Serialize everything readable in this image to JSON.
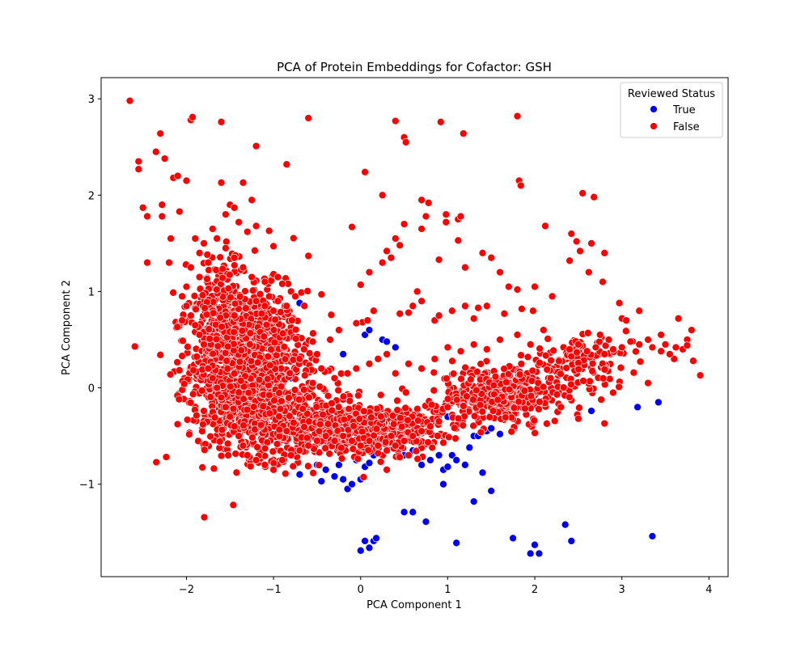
{
  "chart_data": {
    "type": "scatter",
    "title": "PCA of Protein Embeddings for Cofactor: GSH",
    "xlabel": "PCA Component 1",
    "ylabel": "PCA Component 2",
    "xlim": [
      -2.98,
      4.22
    ],
    "ylim": [
      -1.96,
      3.22
    ],
    "xticks": [
      -2,
      -1,
      0,
      1,
      2,
      3,
      4
    ],
    "yticks": [
      -1,
      0,
      1,
      2,
      3
    ],
    "xtick_labels": [
      "−2",
      "−1",
      "0",
      "1",
      "2",
      "3",
      "4"
    ],
    "ytick_labels": [
      "−1",
      "0",
      "1",
      "2",
      "3"
    ],
    "grid": false,
    "legend": {
      "title": "Reviewed Status",
      "position": "upper-right"
    },
    "series": [
      {
        "name": "True",
        "color": "#0000ff",
        "points": [
          [
            -1.6,
            1.0
          ],
          [
            -0.7,
            0.88
          ],
          [
            -0.7,
            -0.9
          ],
          [
            -0.5,
            -0.8
          ],
          [
            -0.45,
            -0.97
          ],
          [
            -0.4,
            -0.85
          ],
          [
            -0.3,
            -0.92
          ],
          [
            -0.25,
            -0.8
          ],
          [
            -0.2,
            -0.95
          ],
          [
            -0.15,
            -1.05
          ],
          [
            -0.1,
            -1.0
          ],
          [
            -0.05,
            -0.75
          ],
          [
            0.0,
            -0.95
          ],
          [
            0.05,
            -0.82
          ],
          [
            0.1,
            -0.78
          ],
          [
            0.15,
            -0.7
          ],
          [
            0.05,
            0.55
          ],
          [
            0.1,
            0.6
          ],
          [
            0.25,
            0.5
          ],
          [
            0.3,
            0.48
          ],
          [
            0.4,
            0.42
          ],
          [
            -0.2,
            0.35
          ],
          [
            0.35,
            -0.6
          ],
          [
            0.5,
            -0.7
          ],
          [
            0.6,
            -0.65
          ],
          [
            0.7,
            -0.8
          ],
          [
            0.8,
            -0.75
          ],
          [
            0.9,
            -0.7
          ],
          [
            0.95,
            -0.85
          ],
          [
            1.0,
            -0.82
          ],
          [
            1.05,
            -0.7
          ],
          [
            1.1,
            -0.75
          ],
          [
            1.2,
            -0.8
          ],
          [
            1.3,
            -0.5
          ],
          [
            1.35,
            -0.5
          ],
          [
            1.45,
            -0.45
          ],
          [
            1.5,
            -0.42
          ],
          [
            1.6,
            -0.48
          ],
          [
            1.25,
            -0.62
          ],
          [
            0.95,
            -1.0
          ],
          [
            1.3,
            -1.18
          ],
          [
            1.5,
            -1.07
          ],
          [
            1.4,
            -0.88
          ],
          [
            0.5,
            -1.29
          ],
          [
            0.6,
            -1.29
          ],
          [
            0.75,
            -1.39
          ],
          [
            1.1,
            -1.61
          ],
          [
            0.0,
            -1.69
          ],
          [
            0.05,
            -1.59
          ],
          [
            0.1,
            -1.66
          ],
          [
            0.15,
            -1.59
          ],
          [
            0.18,
            -1.56
          ],
          [
            1.75,
            -1.56
          ],
          [
            1.95,
            -1.72
          ],
          [
            2.05,
            -1.72
          ],
          [
            2.0,
            -1.63
          ],
          [
            2.35,
            -1.42
          ],
          [
            2.42,
            -1.59
          ],
          [
            3.35,
            -1.54
          ],
          [
            2.65,
            -0.24
          ],
          [
            3.18,
            -0.2
          ],
          [
            3.42,
            -0.15
          ],
          [
            1.7,
            -0.3
          ],
          [
            1.0,
            -0.3
          ],
          [
            -1.2,
            0.05
          ],
          [
            -0.8,
            0.1
          ]
        ]
      },
      {
        "name": "False",
        "color": "#ff0000",
        "points": [
          [
            -2.65,
            2.98
          ],
          [
            -2.55,
            2.35
          ],
          [
            -2.55,
            2.27
          ],
          [
            -2.5,
            1.87
          ],
          [
            -2.45,
            1.3
          ],
          [
            -2.45,
            1.78
          ],
          [
            -2.35,
            2.45
          ],
          [
            -2.3,
            2.64
          ],
          [
            -2.28,
            1.9
          ],
          [
            -2.28,
            1.78
          ],
          [
            -2.25,
            2.38
          ],
          [
            -2.2,
            1.3
          ],
          [
            -2.18,
            1.55
          ],
          [
            -2.15,
            2.18
          ],
          [
            -2.1,
            2.2
          ],
          [
            -2.08,
            1.83
          ],
          [
            -2.0,
            2.15
          ],
          [
            -1.95,
            2.78
          ],
          [
            -1.93,
            2.81
          ],
          [
            -1.9,
            1.55
          ],
          [
            -1.6,
            2.76
          ],
          [
            -1.6,
            2.13
          ],
          [
            -1.2,
            2.51
          ],
          [
            -1.35,
            2.13
          ],
          [
            -0.85,
            2.32
          ],
          [
            -0.6,
            2.8
          ],
          [
            -1.25,
            1.95
          ],
          [
            -1.5,
            1.9
          ],
          [
            -1.45,
            1.87
          ],
          [
            -1.55,
            1.8
          ],
          [
            -1.4,
            1.72
          ],
          [
            -1.3,
            1.62
          ],
          [
            -1.2,
            1.68
          ],
          [
            -1.05,
            1.63
          ],
          [
            -1.0,
            1.47
          ],
          [
            -0.6,
            1.37
          ],
          [
            -0.45,
            0.97
          ],
          [
            0.05,
            2.24
          ],
          [
            -0.1,
            1.67
          ],
          [
            0.25,
            2.0
          ],
          [
            0.4,
            2.77
          ],
          [
            0.5,
            2.6
          ],
          [
            0.52,
            2.55
          ],
          [
            0.92,
            2.76
          ],
          [
            1.18,
            2.64
          ],
          [
            1.8,
            2.82
          ],
          [
            1.82,
            2.15
          ],
          [
            1.84,
            2.1
          ],
          [
            2.55,
            2.02
          ],
          [
            2.68,
            1.98
          ],
          [
            0.7,
            1.95
          ],
          [
            0.78,
            1.92
          ],
          [
            0.5,
            1.7
          ],
          [
            0.75,
            1.78
          ],
          [
            0.98,
            1.8
          ],
          [
            0.98,
            1.72
          ],
          [
            1.12,
            1.75
          ],
          [
            1.15,
            1.78
          ],
          [
            1.12,
            1.53
          ],
          [
            0.7,
            1.65
          ],
          [
            0.4,
            1.55
          ],
          [
            0.45,
            1.48
          ],
          [
            0.3,
            1.42
          ],
          [
            0.25,
            1.3
          ],
          [
            0.35,
            1.35
          ],
          [
            0.9,
            1.33
          ],
          [
            1.2,
            1.25
          ],
          [
            0.1,
            1.2
          ],
          [
            0.0,
            1.07
          ],
          [
            2.12,
            1.68
          ],
          [
            2.42,
            1.6
          ],
          [
            2.48,
            1.52
          ],
          [
            2.65,
            1.5
          ],
          [
            2.52,
            1.42
          ],
          [
            2.8,
            1.4
          ],
          [
            2.4,
            1.32
          ],
          [
            2.62,
            1.2
          ],
          [
            2.78,
            1.1
          ],
          [
            1.4,
            1.4
          ],
          [
            1.5,
            1.35
          ],
          [
            1.6,
            1.2
          ],
          [
            1.7,
            1.05
          ],
          [
            1.8,
            1.02
          ],
          [
            2.0,
            1.05
          ],
          [
            2.2,
            0.95
          ],
          [
            1.35,
            0.83
          ],
          [
            1.45,
            0.85
          ],
          [
            1.65,
            0.77
          ],
          [
            1.85,
            0.82
          ],
          [
            1.98,
            0.8
          ],
          [
            0.65,
            1.0
          ],
          [
            0.7,
            0.9
          ],
          [
            0.6,
            0.85
          ],
          [
            0.55,
            0.78
          ],
          [
            0.45,
            0.77
          ],
          [
            0.85,
            0.7
          ],
          [
            0.9,
            0.75
          ],
          [
            1.05,
            0.8
          ],
          [
            1.3,
            0.72
          ],
          [
            1.2,
            0.85
          ],
          [
            2.97,
            0.88
          ],
          [
            3.0,
            0.72
          ],
          [
            3.2,
            0.8
          ],
          [
            3.05,
            0.7
          ],
          [
            3.65,
            0.72
          ],
          [
            3.45,
            0.55
          ],
          [
            3.8,
            0.6
          ],
          [
            3.9,
            0.13
          ],
          [
            3.75,
            0.5
          ],
          [
            3.82,
            0.28
          ],
          [
            2.9,
            -0.05
          ],
          [
            3.3,
            0.05
          ],
          [
            2.8,
            -0.37
          ],
          [
            2.5,
            -0.32
          ],
          [
            2.3,
            -0.2
          ],
          [
            3.7,
            0.4
          ],
          [
            3.6,
            0.3
          ],
          [
            3.75,
            0.44
          ],
          [
            3.55,
            0.35
          ],
          [
            3.62,
            0.42
          ],
          [
            3.45,
            0.38
          ],
          [
            3.35,
            0.42
          ],
          [
            3.2,
            0.45
          ],
          [
            3.0,
            0.42
          ],
          [
            2.9,
            0.4
          ],
          [
            2.8,
            0.35
          ],
          [
            2.7,
            0.42
          ],
          [
            2.6,
            0.38
          ],
          [
            2.5,
            0.45
          ],
          [
            2.4,
            0.4
          ],
          [
            3.1,
            0.48
          ],
          [
            3.3,
            0.5
          ],
          [
            3.5,
            0.45
          ],
          [
            2.75,
            0.55
          ],
          [
            2.85,
            0.5
          ],
          [
            0.02,
            0.68
          ],
          [
            0.08,
            0.7
          ],
          [
            0.15,
            0.8
          ],
          [
            -0.05,
            0.67
          ],
          [
            -0.25,
            0.6
          ],
          [
            -0.35,
            0.5
          ],
          [
            -0.55,
            0.48
          ],
          [
            -0.65,
            0.4
          ],
          [
            -0.7,
            0.3
          ],
          [
            -0.5,
            0.35
          ],
          [
            -0.8,
            1.0
          ],
          [
            -0.75,
            0.95
          ],
          [
            -0.9,
            1.08
          ],
          [
            -0.95,
            0.9
          ],
          [
            -0.85,
            0.85
          ],
          [
            -1.0,
            0.8
          ],
          [
            -1.1,
            0.85
          ],
          [
            -1.2,
            0.9
          ],
          [
            -1.05,
            0.95
          ],
          [
            -0.95,
            1.15
          ],
          [
            -1.1,
            1.1
          ],
          [
            -1.25,
            1.15
          ],
          [
            -1.35,
            1.25
          ],
          [
            -1.45,
            1.35
          ],
          [
            -1.55,
            1.45
          ],
          [
            -1.65,
            1.55
          ],
          [
            -1.7,
            1.65
          ],
          [
            -1.8,
            1.5
          ],
          [
            -1.85,
            1.4
          ],
          [
            -1.75,
            1.3
          ],
          [
            -1.85,
            1.15
          ],
          [
            -1.95,
            1.25
          ],
          [
            -2.0,
            1.05
          ],
          [
            -2.05,
            0.95
          ],
          [
            -2.0,
            0.85
          ],
          [
            -1.95,
            0.75
          ],
          [
            -2.05,
            0.7
          ],
          [
            -1.9,
            0.65
          ],
          [
            -1.85,
            0.55
          ],
          [
            -1.8,
            0.45
          ],
          [
            -2.05,
            0.33
          ],
          [
            -1.8,
            -0.24
          ],
          [
            -1.75,
            0.2
          ],
          [
            -1.7,
            0.1
          ],
          [
            -1.65,
            0.0
          ],
          [
            -1.6,
            -0.1
          ],
          [
            -1.55,
            -0.2
          ],
          [
            -1.5,
            -0.3
          ],
          [
            -1.45,
            -0.4
          ],
          [
            -1.4,
            -0.5
          ],
          [
            -1.35,
            -0.6
          ],
          [
            -1.3,
            -0.7
          ],
          [
            -1.2,
            -0.75
          ],
          [
            -1.1,
            -0.8
          ],
          [
            -1.0,
            -0.85
          ],
          [
            -0.9,
            -0.75
          ],
          [
            -0.8,
            -0.7
          ],
          [
            -0.7,
            -0.65
          ],
          [
            -0.6,
            -0.6
          ],
          [
            -0.5,
            -0.55
          ],
          [
            -0.4,
            -0.5
          ],
          [
            -0.3,
            -0.55
          ],
          [
            -0.2,
            -0.5
          ],
          [
            -0.1,
            -0.55
          ],
          [
            0.0,
            -0.6
          ],
          [
            0.1,
            -0.55
          ],
          [
            0.2,
            -0.6
          ],
          [
            0.3,
            -0.65
          ],
          [
            0.4,
            -0.6
          ],
          [
            0.5,
            -0.55
          ],
          [
            0.6,
            -0.5
          ],
          [
            0.7,
            -0.45
          ],
          [
            0.8,
            -0.4
          ],
          [
            0.9,
            -0.35
          ],
          [
            1.0,
            -0.2
          ],
          [
            0.3,
            -0.85
          ],
          [
            0.95,
            -0.57
          ],
          [
            0.55,
            -0.7
          ],
          [
            0.45,
            -0.72
          ],
          [
            0.2,
            -0.68
          ],
          [
            2.1,
            0.6
          ],
          [
            1.95,
            0.45
          ],
          [
            1.8,
            0.55
          ],
          [
            1.6,
            0.5
          ],
          [
            1.45,
            0.4
          ],
          [
            1.3,
            0.45
          ],
          [
            1.15,
            0.38
          ],
          [
            1.0,
            0.42
          ],
          [
            0.85,
            0.3
          ],
          [
            0.7,
            0.2
          ],
          [
            0.55,
            0.25
          ],
          [
            0.4,
            0.15
          ],
          [
            0.3,
            0.35
          ],
          [
            0.2,
            0.3
          ],
          [
            0.1,
            0.25
          ],
          [
            -0.05,
            0.2
          ],
          [
            -0.15,
            0.15
          ],
          [
            -0.3,
            0.1
          ],
          [
            -0.45,
            0.2
          ],
          [
            -0.55,
            0.05
          ]
        ],
        "dense_clusters": [
          {
            "x": -1.3,
            "y": 0.25,
            "sx": 0.32,
            "sy": 0.38,
            "n": 1100
          },
          {
            "x": -0.9,
            "y": -0.35,
            "sx": 0.45,
            "sy": 0.2,
            "n": 500
          },
          {
            "x": 0.2,
            "y": -0.42,
            "sx": 0.35,
            "sy": 0.12,
            "n": 500
          },
          {
            "x": 1.6,
            "y": -0.08,
            "sx": 0.35,
            "sy": 0.15,
            "n": 400
          },
          {
            "x": -1.6,
            "y": 0.75,
            "sx": 0.2,
            "sy": 0.3,
            "n": 250
          },
          {
            "x": 2.5,
            "y": 0.25,
            "sx": 0.3,
            "sy": 0.12,
            "n": 120
          }
        ]
      }
    ]
  }
}
